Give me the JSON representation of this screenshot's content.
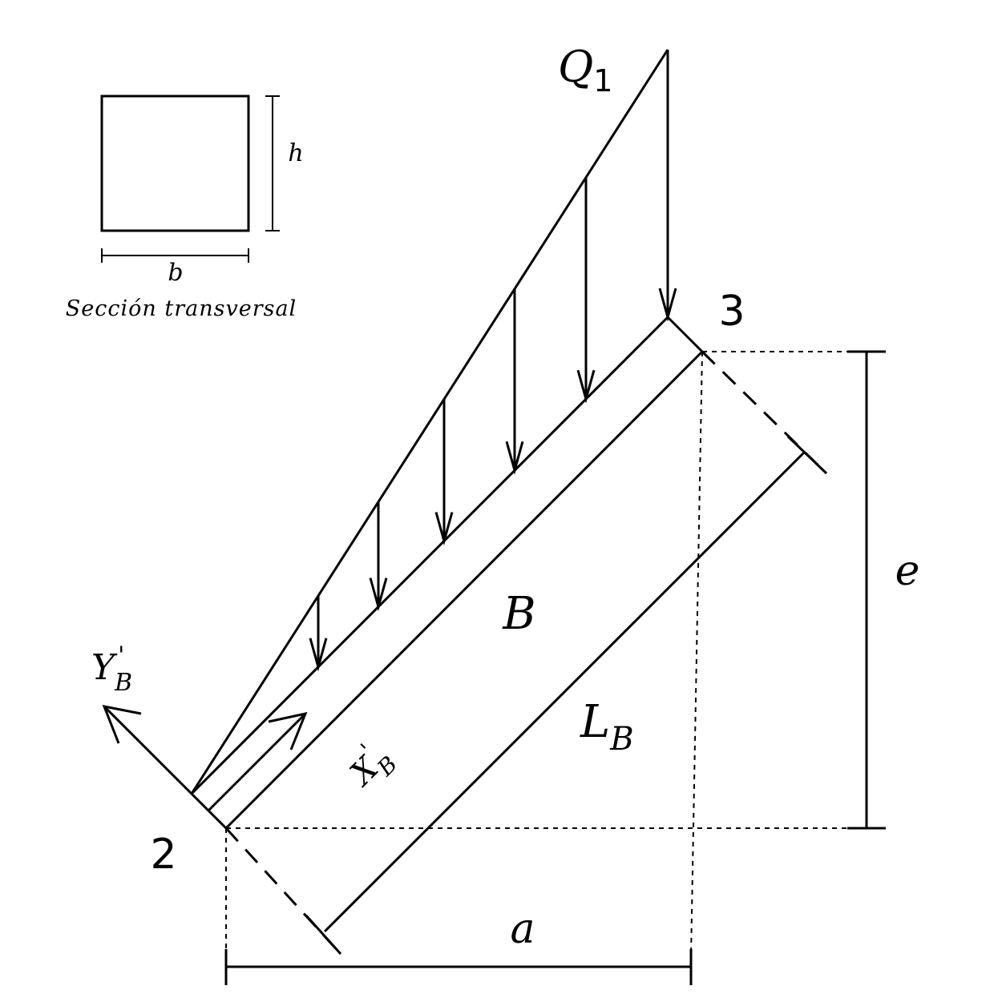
{
  "cross_section": {
    "height_label": "h",
    "base_label": "b",
    "caption": "Sección transversal"
  },
  "load": {
    "name": "Q",
    "subscript": "1"
  },
  "nodes": {
    "start": "2",
    "end": "3"
  },
  "member": {
    "label": "B",
    "length_name": "L",
    "length_subscript": "B"
  },
  "local_axes": {
    "x_name": "X",
    "x_prime": "'",
    "x_subscript": "B",
    "y_name": "Y",
    "y_prime": "'",
    "y_subscript": "B"
  },
  "dimensions": {
    "horizontal_label": "a",
    "vertical_label": "e"
  }
}
